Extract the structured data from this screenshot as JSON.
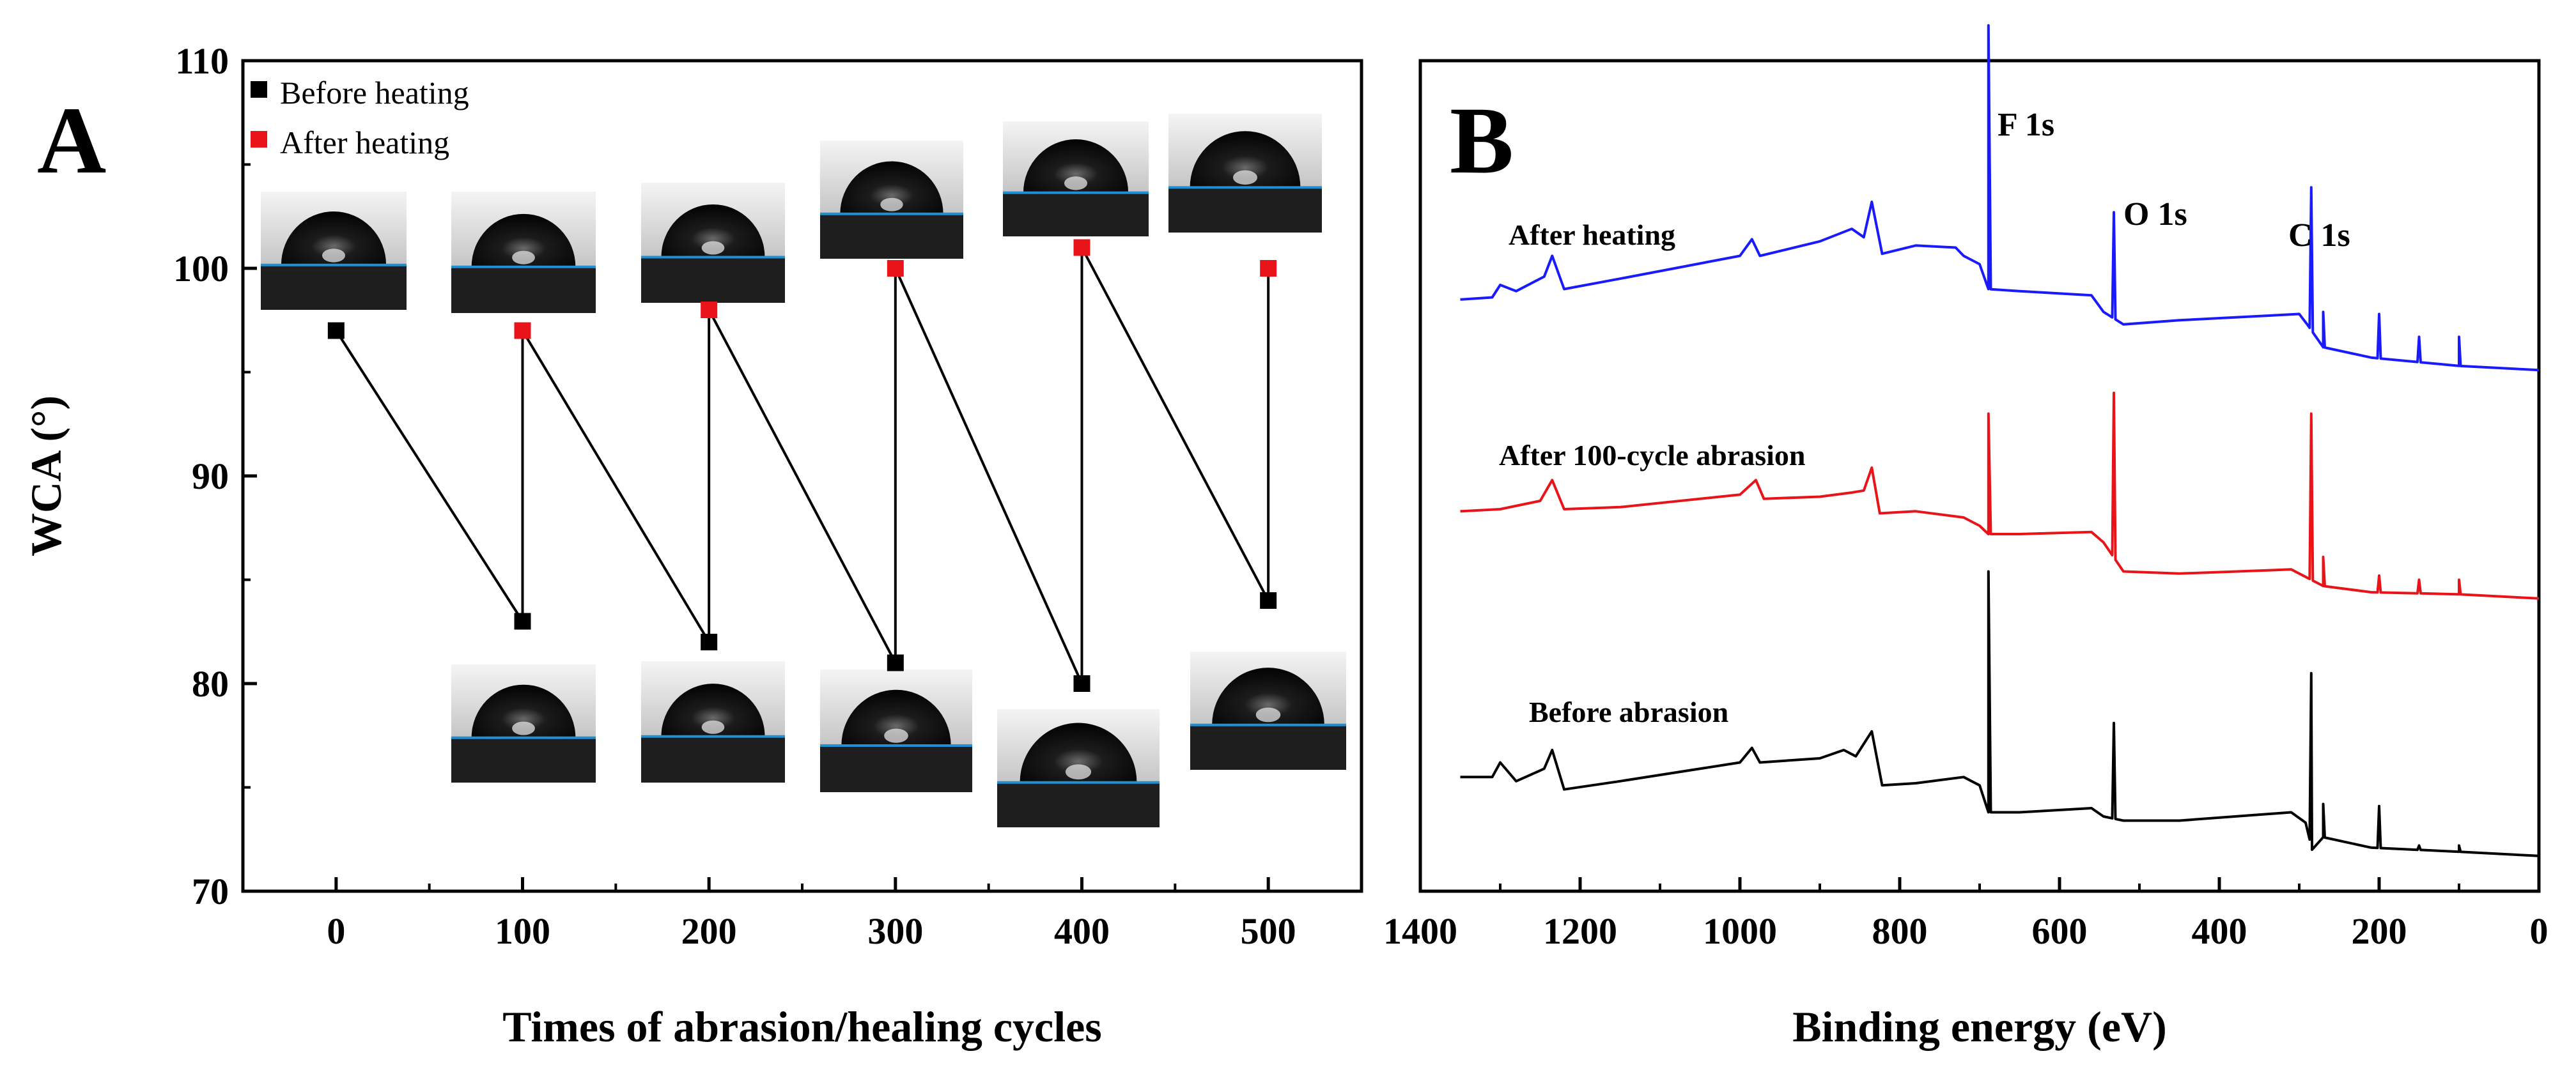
{
  "chart_data": [
    {
      "type": "scatter",
      "panel_label": "A",
      "title": "",
      "xlabel": "Times of abrasion/healing cycles",
      "ylabel": "WCA (°)",
      "xlim": [
        -50,
        550
      ],
      "ylim": [
        70,
        110
      ],
      "x_ticks": [
        0,
        100,
        200,
        300,
        400,
        500
      ],
      "y_ticks": [
        70,
        80,
        90,
        100,
        110
      ],
      "legend": {
        "position": "top-left",
        "entries": [
          {
            "name": "Before heating",
            "color": "#000000"
          },
          {
            "name": "After heating",
            "color": "#e8141a"
          }
        ]
      },
      "series": [
        {
          "name": "Before heating",
          "color": "#000000",
          "points": [
            {
              "x": 0,
              "y": 97
            },
            {
              "x": 100,
              "y": 83
            },
            {
              "x": 200,
              "y": 82
            },
            {
              "x": 300,
              "y": 81
            },
            {
              "x": 400,
              "y": 80
            },
            {
              "x": 500,
              "y": 84
            }
          ]
        },
        {
          "name": "After heating",
          "color": "#e8141a",
          "points": [
            {
              "x": 100,
              "y": 97
            },
            {
              "x": 200,
              "y": 98
            },
            {
              "x": 300,
              "y": 100
            },
            {
              "x": 400,
              "y": 101
            },
            {
              "x": 500,
              "y": 100
            }
          ]
        }
      ],
      "connection_path": [
        [
          0,
          97
        ],
        [
          100,
          83
        ],
        [
          100,
          97
        ],
        [
          200,
          82
        ],
        [
          200,
          98
        ],
        [
          300,
          81
        ],
        [
          300,
          100
        ],
        [
          400,
          80
        ],
        [
          400,
          101
        ],
        [
          500,
          84
        ],
        [
          500,
          100
        ]
      ],
      "droplet_images": [
        {
          "x": 0,
          "group": "upper"
        },
        {
          "x": 100,
          "group": "upper"
        },
        {
          "x": 200,
          "group": "upper"
        },
        {
          "x": 300,
          "group": "upper"
        },
        {
          "x": 400,
          "group": "upper"
        },
        {
          "x": 500,
          "group": "upper"
        },
        {
          "x": 100,
          "group": "lower"
        },
        {
          "x": 200,
          "group": "lower"
        },
        {
          "x": 300,
          "group": "lower"
        },
        {
          "x": 400,
          "group": "lower"
        },
        {
          "x": 500,
          "group": "lower"
        }
      ]
    },
    {
      "type": "line",
      "panel_label": "B",
      "title": "",
      "xlabel": "Binding energy (eV)",
      "ylabel": "",
      "xlim": [
        1400,
        0
      ],
      "x_ticks": [
        1400,
        1200,
        1000,
        800,
        600,
        400,
        200,
        0
      ],
      "y_ticks_shown": false,
      "series": [
        {
          "name": "After heating",
          "color": "#1a1aff",
          "label": "After heating",
          "baseline": [
            [
              1350,
              98.5
            ],
            [
              1310,
              98.6
            ],
            [
              1300,
              99.2
            ],
            [
              1280,
              98.9
            ],
            [
              1245,
              99.6
            ],
            [
              1235,
              100.6
            ],
            [
              1220,
              99.0
            ],
            [
              1150,
              99.5
            ],
            [
              1000,
              100.6
            ],
            [
              985,
              101.4
            ],
            [
              975,
              100.6
            ],
            [
              900,
              101.3
            ],
            [
              860,
              101.9
            ],
            [
              845,
              101.5
            ],
            [
              835,
              103.2
            ],
            [
              822,
              100.7
            ],
            [
              780,
              101.1
            ],
            [
              730,
              101.0
            ],
            [
              720,
              100.6
            ],
            [
              700,
              100.2
            ],
            [
              689,
              99.0
            ],
            [
              650,
              98.9
            ],
            [
              560,
              98.7
            ],
            [
              545,
              97.9
            ],
            [
              520,
              97.3
            ],
            [
              450,
              97.5
            ],
            [
              300,
              97.8
            ],
            [
              290,
              97.3
            ],
            [
              270,
              96.2
            ],
            [
              210,
              95.7
            ],
            [
              100,
              95.3
            ],
            [
              0,
              95.1
            ]
          ],
          "peaks": [
            [
              689,
              111.7
            ],
            [
              532,
              102.7
            ],
            [
              285,
              103.9
            ],
            [
              270,
              97.9
            ],
            [
              200,
              97.8
            ],
            [
              150,
              96.7
            ],
            [
              100,
              96.7
            ]
          ]
        },
        {
          "name": "After 100-cycle abrasion",
          "color": "#e8141a",
          "label": "After 100-cycle abrasion",
          "baseline": [
            [
              1350,
              88.3
            ],
            [
              1300,
              88.4
            ],
            [
              1250,
              88.8
            ],
            [
              1235,
              89.8
            ],
            [
              1220,
              88.4
            ],
            [
              1150,
              88.5
            ],
            [
              1000,
              89.1
            ],
            [
              980,
              89.8
            ],
            [
              970,
              88.9
            ],
            [
              900,
              89.0
            ],
            [
              860,
              89.2
            ],
            [
              845,
              89.3
            ],
            [
              835,
              90.4
            ],
            [
              825,
              88.2
            ],
            [
              780,
              88.3
            ],
            [
              720,
              88.0
            ],
            [
              700,
              87.6
            ],
            [
              689,
              87.2
            ],
            [
              650,
              87.2
            ],
            [
              560,
              87.3
            ],
            [
              545,
              86.8
            ],
            [
              520,
              85.4
            ],
            [
              450,
              85.3
            ],
            [
              310,
              85.5
            ],
            [
              290,
              85.1
            ],
            [
              270,
              84.7
            ],
            [
              210,
              84.4
            ],
            [
              100,
              84.3
            ],
            [
              0,
              84.1
            ]
          ],
          "peaks": [
            [
              689,
              93.0
            ],
            [
              532,
              94.0
            ],
            [
              285,
              93.0
            ],
            [
              270,
              86.1
            ],
            [
              200,
              85.2
            ],
            [
              150,
              85.0
            ],
            [
              100,
              85.0
            ]
          ]
        },
        {
          "name": "Before abrasion",
          "color": "#000000",
          "label": "Before abrasion",
          "baseline": [
            [
              1350,
              75.5
            ],
            [
              1310,
              75.5
            ],
            [
              1300,
              76.2
            ],
            [
              1280,
              75.3
            ],
            [
              1245,
              75.9
            ],
            [
              1235,
              76.8
            ],
            [
              1220,
              74.9
            ],
            [
              1150,
              75.3
            ],
            [
              1000,
              76.2
            ],
            [
              985,
              76.9
            ],
            [
              975,
              76.2
            ],
            [
              900,
              76.4
            ],
            [
              870,
              76.8
            ],
            [
              855,
              76.5
            ],
            [
              835,
              77.7
            ],
            [
              822,
              75.1
            ],
            [
              780,
              75.2
            ],
            [
              720,
              75.5
            ],
            [
              700,
              75.1
            ],
            [
              689,
              73.8
            ],
            [
              650,
              73.8
            ],
            [
              560,
              74.0
            ],
            [
              545,
              73.6
            ],
            [
              520,
              73.4
            ],
            [
              450,
              73.4
            ],
            [
              310,
              73.8
            ],
            [
              292,
              73.3
            ],
            [
              284,
              72.0
            ],
            [
              270,
              72.6
            ],
            [
              210,
              72.1
            ],
            [
              100,
              71.9
            ],
            [
              0,
              71.7
            ]
          ],
          "peaks": [
            [
              689,
              85.4
            ],
            [
              532,
              78.1
            ],
            [
              285,
              80.5
            ],
            [
              270,
              74.2
            ],
            [
              200,
              74.1
            ],
            [
              150,
              72.2
            ],
            [
              100,
              72.2
            ]
          ]
        }
      ],
      "annotations": [
        "F 1s",
        "O 1s",
        "C 1s"
      ]
    }
  ]
}
